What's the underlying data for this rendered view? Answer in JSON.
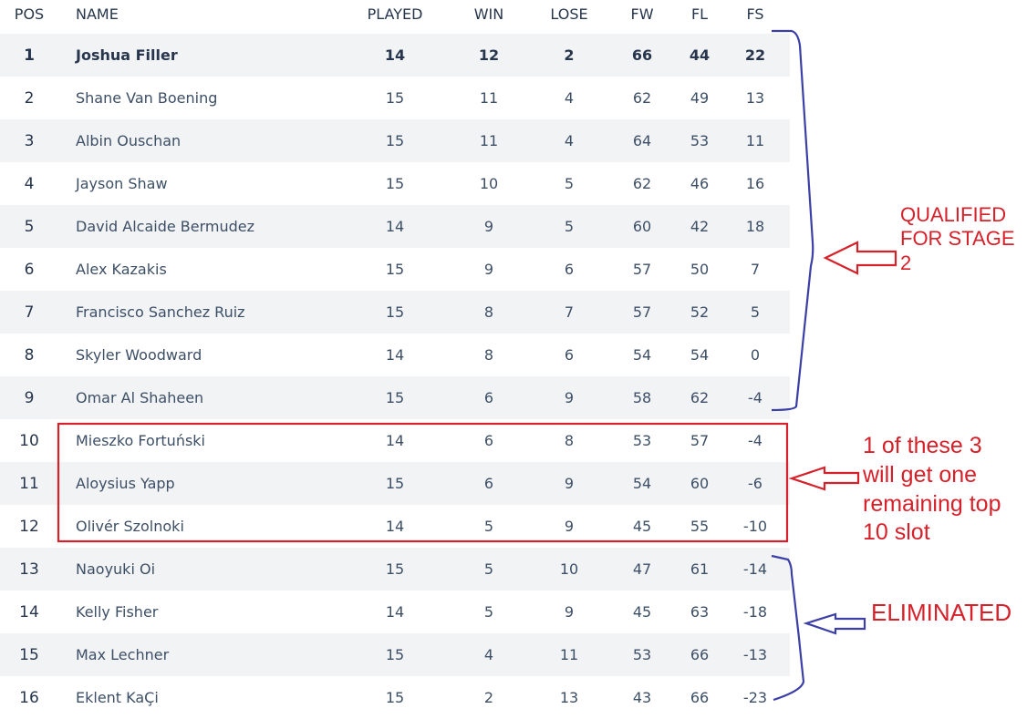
{
  "table": {
    "headers": {
      "pos": "POS",
      "name": "NAME",
      "played": "PLAYED",
      "win": "WIN",
      "lose": "LOSE",
      "fw": "FW",
      "fl": "FL",
      "fs": "FS"
    },
    "rows": [
      {
        "pos": "1",
        "name": "Joshua Filler",
        "played": "14",
        "win": "12",
        "lose": "2",
        "fw": "66",
        "fl": "44",
        "fs": "22"
      },
      {
        "pos": "2",
        "name": "Shane Van Boening",
        "played": "15",
        "win": "11",
        "lose": "4",
        "fw": "62",
        "fl": "49",
        "fs": "13"
      },
      {
        "pos": "3",
        "name": "Albin Ouschan",
        "played": "15",
        "win": "11",
        "lose": "4",
        "fw": "64",
        "fl": "53",
        "fs": "11"
      },
      {
        "pos": "4",
        "name": "Jayson Shaw",
        "played": "15",
        "win": "10",
        "lose": "5",
        "fw": "62",
        "fl": "46",
        "fs": "16"
      },
      {
        "pos": "5",
        "name": "David Alcaide Bermudez",
        "played": "14",
        "win": "9",
        "lose": "5",
        "fw": "60",
        "fl": "42",
        "fs": "18"
      },
      {
        "pos": "6",
        "name": "Alex Kazakis",
        "played": "15",
        "win": "9",
        "lose": "6",
        "fw": "57",
        "fl": "50",
        "fs": "7"
      },
      {
        "pos": "7",
        "name": "Francisco Sanchez Ruiz",
        "played": "15",
        "win": "8",
        "lose": "7",
        "fw": "57",
        "fl": "52",
        "fs": "5"
      },
      {
        "pos": "8",
        "name": "Skyler Woodward",
        "played": "14",
        "win": "8",
        "lose": "6",
        "fw": "54",
        "fl": "54",
        "fs": "0"
      },
      {
        "pos": "9",
        "name": "Omar Al Shaheen",
        "played": "15",
        "win": "6",
        "lose": "9",
        "fw": "58",
        "fl": "62",
        "fs": "-4"
      },
      {
        "pos": "10",
        "name": "Mieszko Fortuński",
        "played": "14",
        "win": "6",
        "lose": "8",
        "fw": "53",
        "fl": "57",
        "fs": "-4"
      },
      {
        "pos": "11",
        "name": "Aloysius Yapp",
        "played": "15",
        "win": "6",
        "lose": "9",
        "fw": "54",
        "fl": "60",
        "fs": "-6"
      },
      {
        "pos": "12",
        "name": "Olivér Szolnoki",
        "played": "14",
        "win": "5",
        "lose": "9",
        "fw": "45",
        "fl": "55",
        "fs": "-10"
      },
      {
        "pos": "13",
        "name": "Naoyuki Oi",
        "played": "15",
        "win": "5",
        "lose": "10",
        "fw": "47",
        "fl": "61",
        "fs": "-14"
      },
      {
        "pos": "14",
        "name": "Kelly Fisher",
        "played": "14",
        "win": "5",
        "lose": "9",
        "fw": "45",
        "fl": "63",
        "fs": "-18"
      },
      {
        "pos": "15",
        "name": "Max Lechner",
        "played": "15",
        "win": "4",
        "lose": "11",
        "fw": "53",
        "fl": "66",
        "fs": "-13"
      },
      {
        "pos": "16",
        "name": "Eklent KaÇi",
        "played": "15",
        "win": "2",
        "lose": "13",
        "fw": "43",
        "fl": "66",
        "fs": "-23"
      }
    ]
  },
  "annotations": {
    "qualified": [
      "QUALIFIED",
      "FOR STAGE",
      "2"
    ],
    "boundary": [
      "1 of these 3",
      "will get one",
      "remaining top",
      "10 slot"
    ],
    "eliminated": "ELIMINATED"
  },
  "colors": {
    "text": "#3d4f66",
    "header_text": "#27364d",
    "row_alt_bg": "#f2f3f5",
    "annotation_red": "#d6202a",
    "annotation_blue": "#3b3fa6"
  }
}
